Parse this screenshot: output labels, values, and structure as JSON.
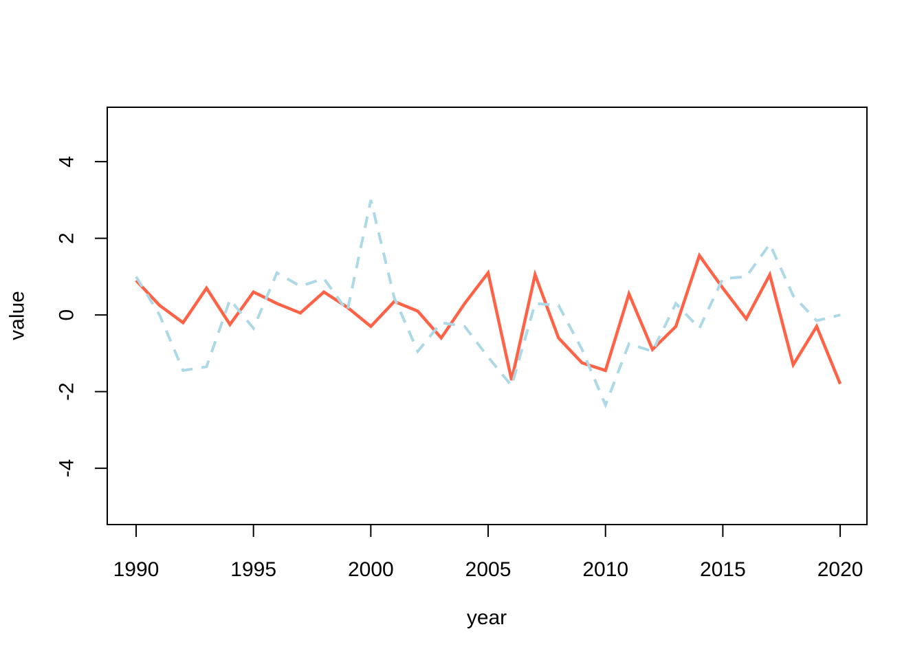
{
  "chart_data": {
    "type": "line",
    "title": "",
    "xlabel": "year",
    "ylabel": "value",
    "x": [
      1990,
      1991,
      1992,
      1993,
      1994,
      1995,
      1996,
      1997,
      1998,
      1999,
      2000,
      2001,
      2002,
      2003,
      2004,
      2005,
      2006,
      2007,
      2008,
      2009,
      2010,
      2011,
      2012,
      2013,
      2014,
      2015,
      2016,
      2017,
      2018,
      2019,
      2020
    ],
    "series": [
      {
        "name": "solid-red-series",
        "color": "#ff6347",
        "style": "solid",
        "line_width": 4.5,
        "values": [
          0.9,
          0.25,
          -0.2,
          0.7,
          -0.25,
          0.6,
          0.3,
          0.05,
          0.6,
          0.2,
          -0.3,
          0.35,
          0.1,
          -0.6,
          0.3,
          1.1,
          -1.7,
          1.05,
          -0.6,
          -1.25,
          -1.45,
          0.55,
          -0.9,
          -0.3,
          1.55,
          0.7,
          -0.1,
          1.05,
          -1.3,
          -0.3,
          -1.8
        ]
      },
      {
        "name": "dashed-blue-series",
        "color": "#add8e6",
        "style": "dashed",
        "line_width": 4,
        "values": [
          1.0,
          0.0,
          -1.45,
          -1.35,
          0.4,
          -0.35,
          1.1,
          0.75,
          0.95,
          0.1,
          3.0,
          0.45,
          -0.95,
          -0.2,
          -0.3,
          -1.1,
          -1.85,
          0.3,
          0.25,
          -0.9,
          -2.35,
          -0.75,
          -0.95,
          0.3,
          -0.35,
          0.95,
          1.0,
          1.85,
          0.5,
          -0.15,
          0.0
        ]
      }
    ],
    "xticks": [
      1990,
      1995,
      2000,
      2005,
      2010,
      2015,
      2020
    ],
    "yticks": [
      -4,
      -2,
      0,
      2,
      4
    ],
    "xlim": [
      1988.77,
      2021.14
    ],
    "ylim": [
      -5.47,
      5.42
    ],
    "grid": false,
    "legend": "none",
    "axis_color": "#000000",
    "y_labels_rotated": true
  }
}
